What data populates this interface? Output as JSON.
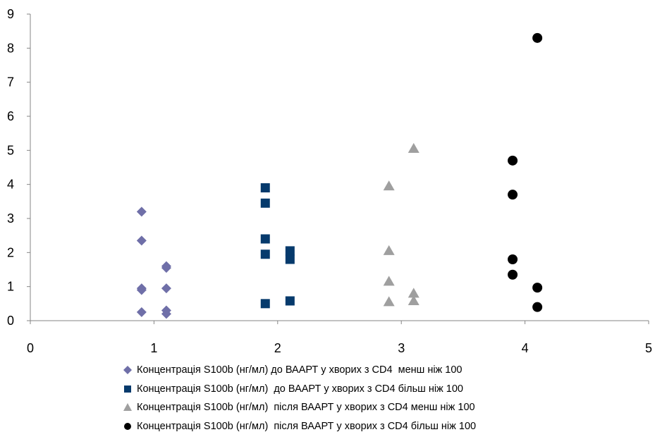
{
  "chart_data": {
    "type": "scatter",
    "xlim": [
      0,
      5
    ],
    "ylim": [
      0,
      9
    ],
    "x_ticks": [
      "0",
      "1",
      "2",
      "3",
      "4",
      "5"
    ],
    "y_ticks": [
      "0",
      "1",
      "2",
      "3",
      "4",
      "5",
      "6",
      "7",
      "8",
      "9"
    ],
    "grid": false,
    "legend_position": "bottom",
    "series": [
      {
        "name": "Концентрація S100b (нг/мл) до ВААРТ у хворих з CD4  менш ніж 100",
        "marker": "diamond",
        "color": "#6f6fa8",
        "points": [
          [
            0.9,
            3.2
          ],
          [
            0.9,
            2.35
          ],
          [
            0.9,
            0.95
          ],
          [
            0.9,
            0.9
          ],
          [
            0.9,
            0.25
          ],
          [
            1.1,
            1.6
          ],
          [
            1.1,
            1.55
          ],
          [
            1.1,
            0.95
          ],
          [
            1.1,
            0.3
          ],
          [
            1.1,
            0.2
          ]
        ]
      },
      {
        "name": "Концентрація S100b (нг/мл)  до ВААРТ у хворих з CD4 більш ніж 100",
        "marker": "square",
        "color": "#063a6c",
        "points": [
          [
            1.9,
            3.9
          ],
          [
            1.9,
            3.45
          ],
          [
            1.9,
            2.4
          ],
          [
            1.9,
            1.95
          ],
          [
            1.9,
            0.5
          ],
          [
            2.1,
            2.05
          ],
          [
            2.1,
            1.8
          ],
          [
            2.1,
            0.58
          ]
        ]
      },
      {
        "name": "Концентрація S100b (нг/мл)  після ВААРТ у хворих з CD4 менш ніж 100",
        "marker": "triangle",
        "color": "#9f9f9f",
        "points": [
          [
            2.9,
            3.95
          ],
          [
            2.9,
            2.05
          ],
          [
            2.9,
            1.15
          ],
          [
            2.9,
            0.55
          ],
          [
            3.1,
            5.05
          ],
          [
            3.1,
            0.8
          ],
          [
            3.1,
            0.58
          ]
        ]
      },
      {
        "name": "Концентрація S100b (нг/мл)  після ВААРТ у хворих з CD4 більш ніж 100",
        "marker": "circle",
        "color": "#000000",
        "points": [
          [
            4.1,
            8.3
          ],
          [
            3.9,
            4.7
          ],
          [
            3.9,
            3.7
          ],
          [
            3.9,
            1.8
          ],
          [
            3.9,
            1.35
          ],
          [
            4.1,
            0.97
          ],
          [
            4.1,
            0.4
          ]
        ]
      }
    ]
  }
}
